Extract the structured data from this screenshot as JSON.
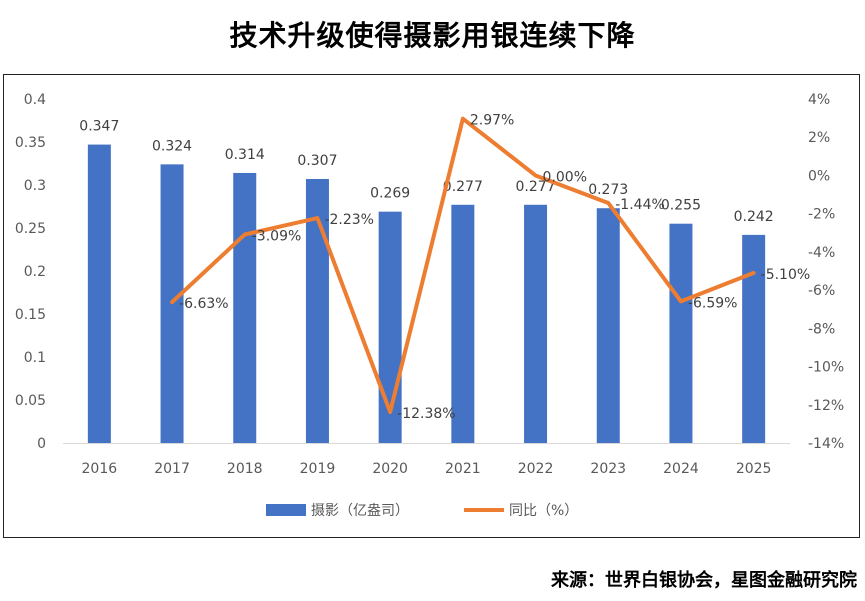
{
  "chart_data": {
    "type": "bar+line",
    "title": "技术升级使得摄影用银连续下降",
    "categories": [
      "2016",
      "2017",
      "2018",
      "2019",
      "2020",
      "2021",
      "2022",
      "2023",
      "2024",
      "2025"
    ],
    "series": [
      {
        "name": "摄影（亿盎司）",
        "type": "bar",
        "axis": "left",
        "color": "#4472C4",
        "values": [
          0.347,
          0.324,
          0.314,
          0.307,
          0.269,
          0.277,
          0.277,
          0.273,
          0.255,
          0.242
        ],
        "labels": [
          "0.347",
          "0.324",
          "0.314",
          "0.307",
          "0.269",
          "0.277",
          "0.277",
          "0.273",
          "0.255",
          "0.242"
        ]
      },
      {
        "name": "同比（%）",
        "type": "line",
        "axis": "right",
        "color": "#ED7D31",
        "values": [
          null,
          -6.63,
          -3.09,
          -2.23,
          -12.38,
          2.97,
          0.0,
          -1.44,
          -6.59,
          -5.1
        ],
        "labels": [
          "",
          "-6.63%",
          "-3.09%",
          "-2.23%",
          "-12.38%",
          "2.97%",
          "0.00%",
          "-1.44%",
          "-6.59%",
          "-5.10%"
        ]
      }
    ],
    "left_axis": {
      "ylim": [
        0,
        0.4
      ],
      "ticks": [
        0,
        0.05,
        0.1,
        0.15,
        0.2,
        0.25,
        0.3,
        0.35,
        0.4
      ],
      "tick_labels": [
        "0",
        "0.05",
        "0.1",
        "0.15",
        "0.2",
        "0.25",
        "0.3",
        "0.35",
        "0.4"
      ]
    },
    "right_axis": {
      "ylim": [
        -14,
        4
      ],
      "ticks": [
        4,
        2,
        0,
        -2,
        -4,
        -6,
        -8,
        -10,
        -12,
        -14
      ],
      "tick_labels": [
        "4%",
        "2%",
        "0%",
        "-2%",
        "-4%",
        "-6%",
        "-8%",
        "-10%",
        "-12%",
        "-14%"
      ]
    },
    "legend": {
      "position": "bottom",
      "items": [
        "摄影（亿盎司）",
        "同比（%）"
      ]
    }
  },
  "source": "来源：世界白银协会，星图金融研究院"
}
